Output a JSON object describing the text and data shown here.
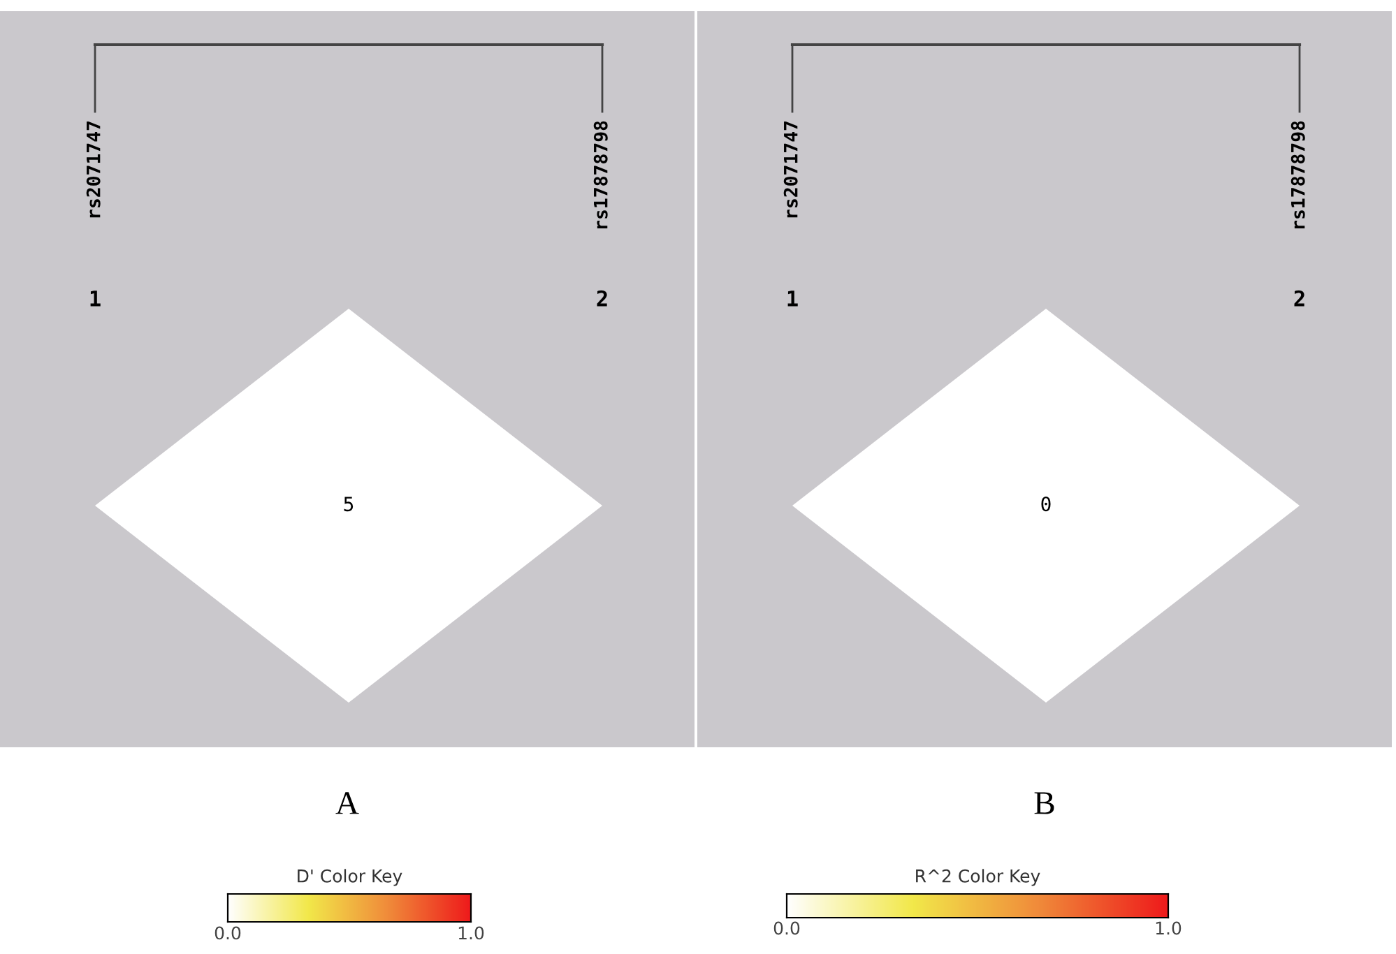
{
  "chart_data": [
    {
      "type": "other",
      "values": [
        5
      ],
      "data_labels": true,
      "annotations": [
        "rs2071747",
        "rs17878798",
        "1",
        "2",
        "0.0",
        "1.0"
      ],
      "xlabel": "A",
      "clabel": "D' Color Key"
    },
    {
      "type": "other",
      "values": [
        0
      ],
      "data_labels": true,
      "annotations": [
        "rs2071747",
        "rs17878798",
        "1",
        "2",
        "0.0",
        "1.0"
      ],
      "xlabel": "B",
      "clabel": "R^2 Color Key"
    }
  ]
}
